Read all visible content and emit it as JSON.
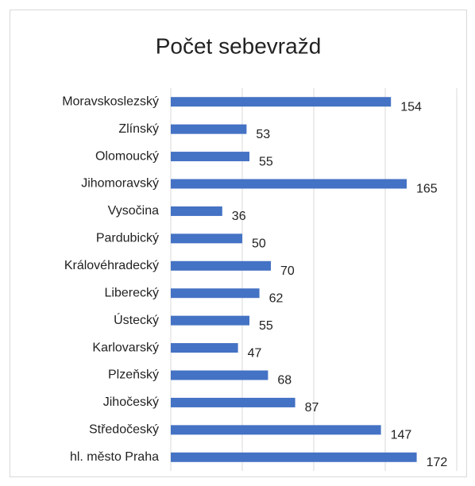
{
  "chart_data": {
    "type": "bar",
    "orientation": "horizontal",
    "title": "Počet sebevražd",
    "categories": [
      "Moravskoslezský",
      "Zlínský",
      "Olomoucký",
      "Jihomoravský",
      "Vysočina",
      "Pardubický",
      "Královéhradecký",
      "Liberecký",
      "Ústecký",
      "Karlovarský",
      "Plzeňský",
      "Jihočeský",
      "Středočeský",
      "hl. město Praha"
    ],
    "values": [
      154,
      53,
      55,
      165,
      36,
      50,
      70,
      62,
      55,
      47,
      68,
      87,
      147,
      172
    ],
    "color": "#4472c4",
    "xlim": [
      0,
      200
    ],
    "xticks": [
      0,
      50,
      100,
      150,
      200
    ],
    "grid": true
  }
}
